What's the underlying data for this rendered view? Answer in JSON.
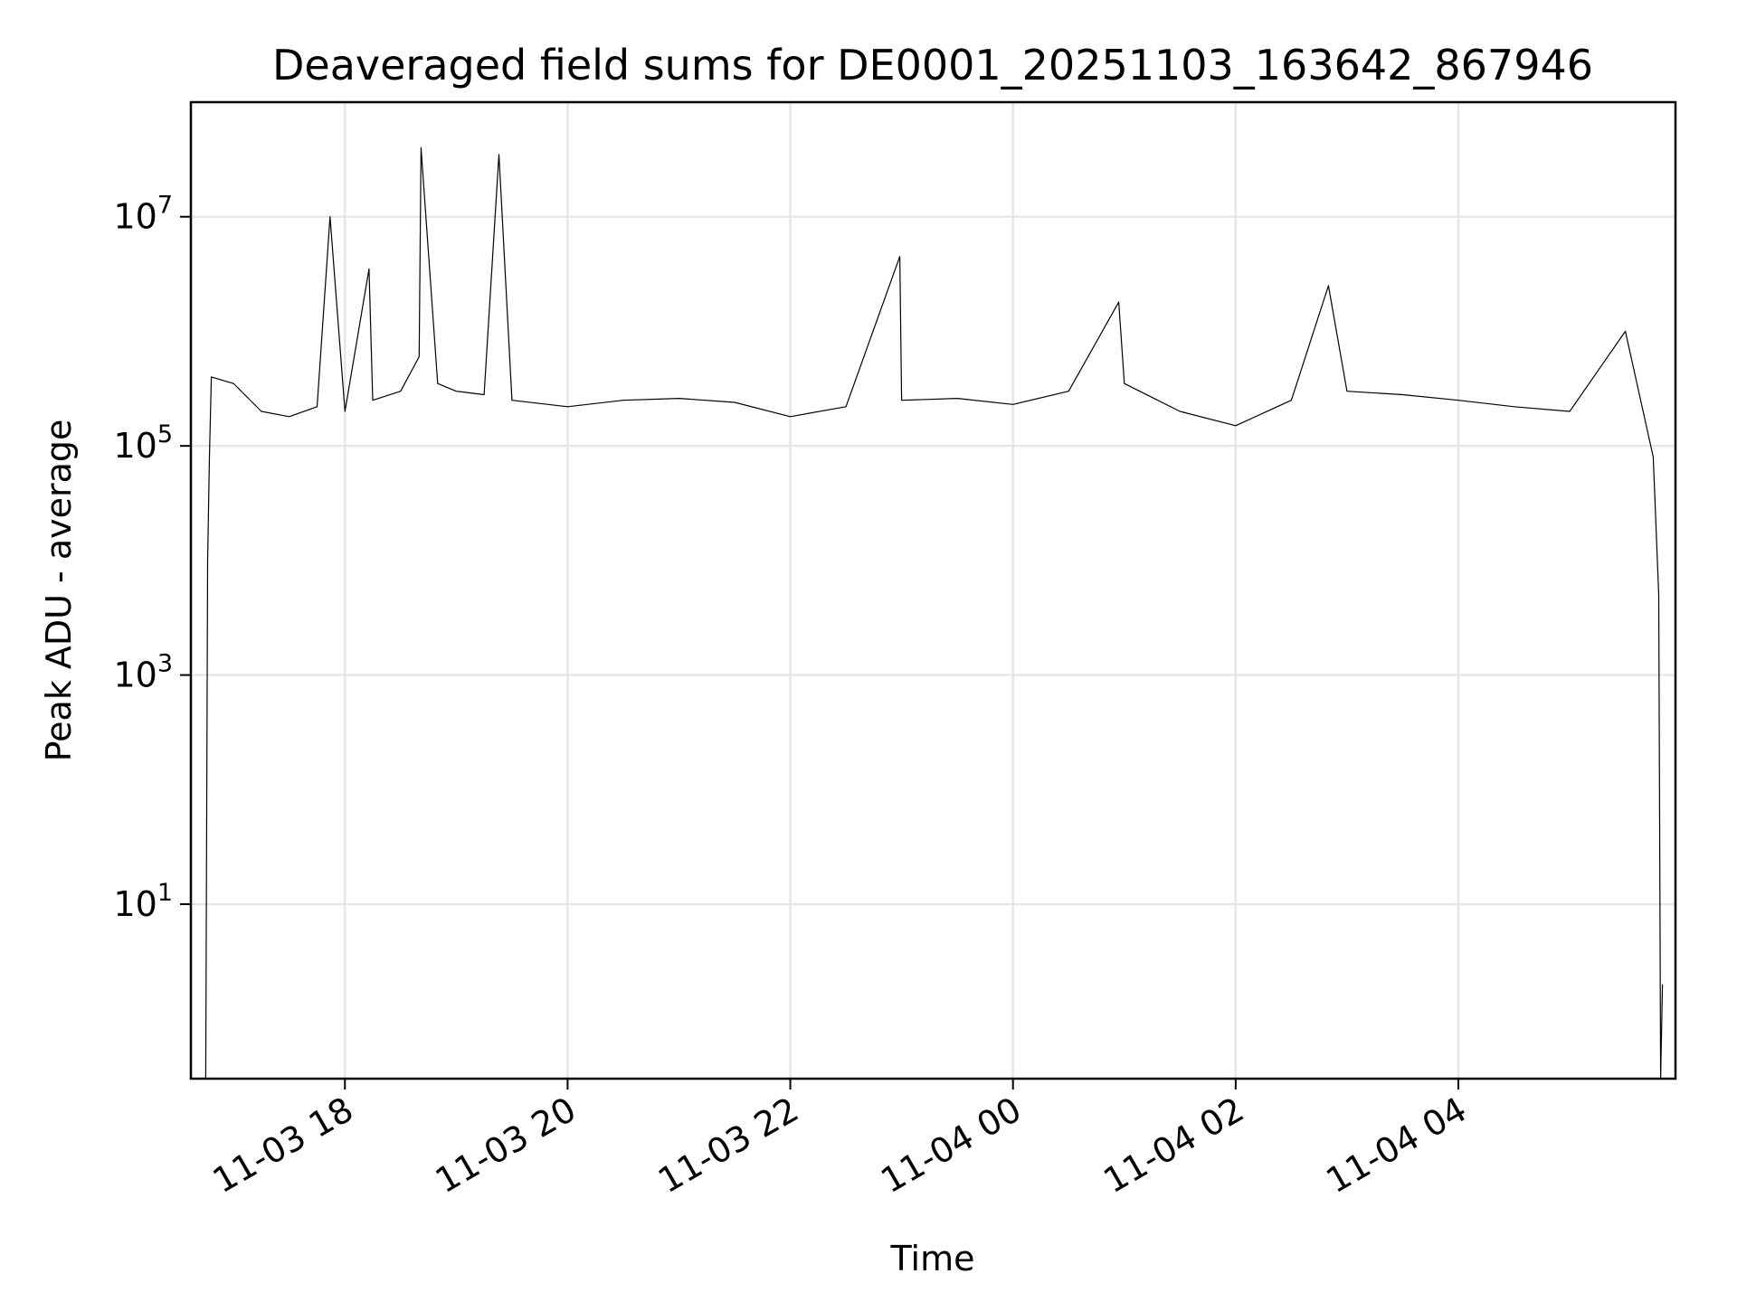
{
  "chart_data": {
    "type": "line",
    "title": "Deaveraged field sums for DE0001_20251103_163642_867946",
    "xlabel": "Time",
    "ylabel": "Peak ADU - average",
    "x_tick_labels": [
      "11-03 18",
      "11-03 20",
      "11-03 22",
      "11-04 00",
      "11-04 02",
      "11-04 04"
    ],
    "x_ticks": [
      "2025-11-03 18:00",
      "2025-11-03 20:00",
      "2025-11-03 22:00",
      "2025-11-04 00:00",
      "2025-11-04 02:00",
      "2025-11-04 04:00"
    ],
    "xlim": [
      "2025-11-03 16:37",
      "2025-11-04 05:57"
    ],
    "y_scale": "log",
    "y_ticks": [
      10,
      1000,
      100000,
      10000000
    ],
    "y_tick_labels": [
      {
        "base": "10",
        "exp": "1"
      },
      {
        "base": "10",
        "exp": "3"
      },
      {
        "base": "10",
        "exp": "5"
      },
      {
        "base": "10",
        "exp": "7"
      }
    ],
    "ylim": [
      0.3,
      100000000
    ],
    "grid": true,
    "line_color": "#000000",
    "series": [
      {
        "points": [
          [
            "2025-11-03 16:45",
            0.3
          ],
          [
            "2025-11-03 16:46",
            10000
          ],
          [
            "2025-11-03 16:47",
            80000
          ],
          [
            "2025-11-03 16:48",
            400000
          ],
          [
            "2025-11-03 17:00",
            350000
          ],
          [
            "2025-11-03 17:15",
            200000
          ],
          [
            "2025-11-03 17:30",
            180000
          ],
          [
            "2025-11-03 17:45",
            220000
          ],
          [
            "2025-11-03 17:52",
            10000000
          ],
          [
            "2025-11-03 18:00",
            200000
          ],
          [
            "2025-11-03 18:15",
            250000
          ],
          [
            "2025-11-03 18:13",
            3500000
          ],
          [
            "2025-11-03 18:30",
            300000
          ],
          [
            "2025-11-03 18:40",
            600000
          ],
          [
            "2025-11-03 18:41",
            40000000
          ],
          [
            "2025-11-03 18:50",
            350000
          ],
          [
            "2025-11-03 19:00",
            300000
          ],
          [
            "2025-11-03 19:15",
            280000
          ],
          [
            "2025-11-03 19:23",
            35000000
          ],
          [
            "2025-11-03 19:30",
            250000
          ],
          [
            "2025-11-03 20:00",
            220000
          ],
          [
            "2025-11-03 20:30",
            250000
          ],
          [
            "2025-11-03 21:00",
            260000
          ],
          [
            "2025-11-03 21:30",
            240000
          ],
          [
            "2025-11-03 22:00",
            180000
          ],
          [
            "2025-11-03 22:30",
            220000
          ],
          [
            "2025-11-03 22:59",
            4500000
          ],
          [
            "2025-11-03 23:00",
            250000
          ],
          [
            "2025-11-03 23:30",
            260000
          ],
          [
            "2025-11-04 00:00",
            230000
          ],
          [
            "2025-11-04 00:30",
            300000
          ],
          [
            "2025-11-04 00:57",
            1800000
          ],
          [
            "2025-11-04 01:00",
            350000
          ],
          [
            "2025-11-04 01:30",
            200000
          ],
          [
            "2025-11-04 02:00",
            150000
          ],
          [
            "2025-11-04 02:30",
            250000
          ],
          [
            "2025-11-04 02:50",
            2500000
          ],
          [
            "2025-11-04 03:00",
            300000
          ],
          [
            "2025-11-04 03:30",
            280000
          ],
          [
            "2025-11-04 04:00",
            250000
          ],
          [
            "2025-11-04 04:30",
            220000
          ],
          [
            "2025-11-04 05:00",
            200000
          ],
          [
            "2025-11-04 05:30",
            1000000
          ],
          [
            "2025-11-04 05:45",
            80000
          ],
          [
            "2025-11-04 05:48",
            5000
          ],
          [
            "2025-11-04 05:49",
            0.3
          ],
          [
            "2025-11-04 05:50",
            2
          ]
        ]
      }
    ]
  }
}
